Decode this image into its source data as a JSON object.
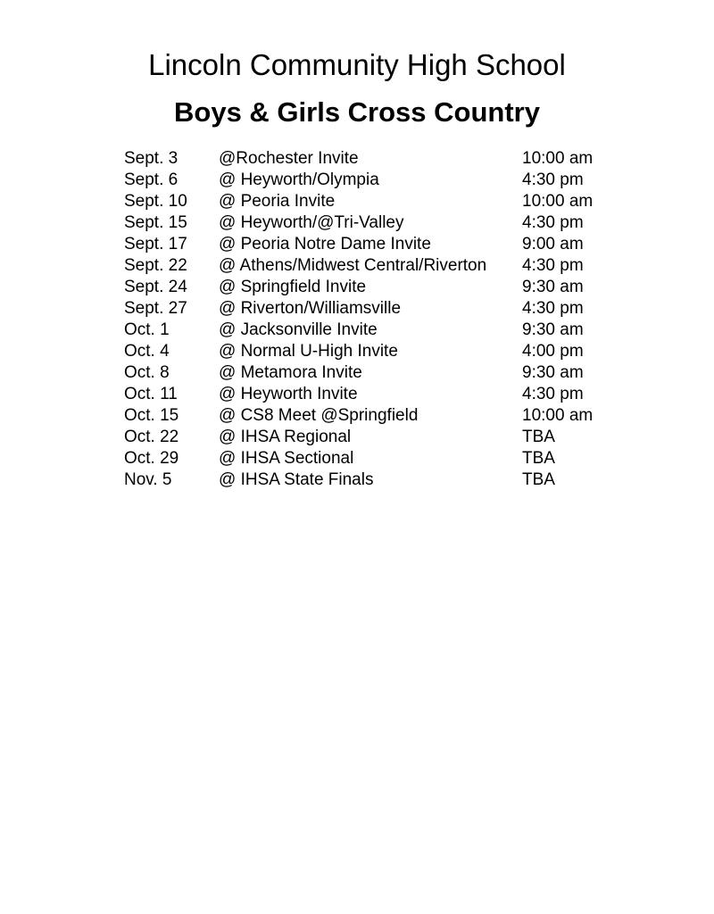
{
  "document": {
    "title": "Lincoln Community High School",
    "subtitle": "Boys & Girls Cross Country",
    "colors": {
      "text": "#000000",
      "background": "#ffffff"
    }
  },
  "schedule": {
    "rows": [
      {
        "date": "Sept. 3",
        "event": "@Rochester Invite",
        "time": "10:00 am"
      },
      {
        "date": "Sept. 6",
        "event": "@ Heyworth/Olympia",
        "time": "4:30 pm"
      },
      {
        "date": "Sept. 10",
        "event": "@ Peoria Invite",
        "time": "10:00 am"
      },
      {
        "date": "Sept. 15",
        "event": "@ Heyworth/@Tri-Valley",
        "time": "4:30 pm"
      },
      {
        "date": "Sept. 17",
        "event": "@ Peoria Notre Dame Invite",
        "time": "9:00 am"
      },
      {
        "date": "Sept. 22",
        "event": "@ Athens/Midwest Central/Riverton",
        "time": "4:30 pm"
      },
      {
        "date": "Sept. 24",
        "event": "@ Springfield Invite",
        "time": "9:30 am"
      },
      {
        "date": "Sept. 27",
        "event": "@ Riverton/Williamsville",
        "time": "4:30 pm"
      },
      {
        "date": "Oct. 1",
        "event": "@ Jacksonville Invite",
        "time": "9:30 am"
      },
      {
        "date": "Oct. 4",
        "event": "@ Normal U-High Invite",
        "time": "4:00 pm"
      },
      {
        "date": "Oct. 8",
        "event": "@ Metamora Invite",
        "time": "9:30 am"
      },
      {
        "date": "Oct. 11",
        "event": "@ Heyworth Invite",
        "time": "4:30 pm"
      },
      {
        "date": "Oct. 15",
        "event": "@ CS8 Meet @Springfield",
        "time": "10:00 am"
      },
      {
        "date": "Oct. 22",
        "event": "@ IHSA Regional",
        "time": "TBA"
      },
      {
        "date": "Oct. 29",
        "event": "@ IHSA Sectional",
        "time": "TBA"
      },
      {
        "date": "Nov. 5",
        "event": "@ IHSA State Finals",
        "time": "TBA"
      }
    ]
  }
}
